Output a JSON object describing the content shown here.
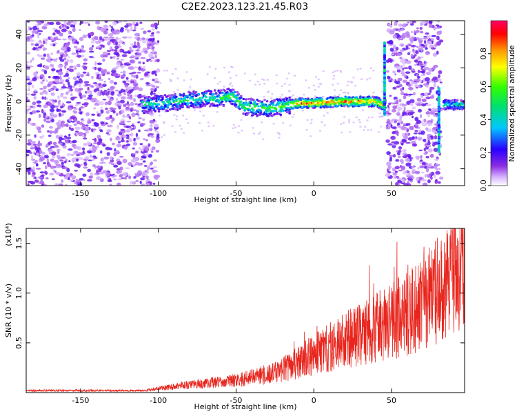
{
  "title": "C2E2.2023.123.21.45.R03",
  "colors": {
    "snr_line": "#e8261e",
    "axes": "#000000"
  },
  "chart_data": [
    {
      "type": "heatmap",
      "xlabel": "Height of straight line (km)",
      "ylabel": "Frequency (Hz)",
      "xlim": [
        -185,
        97
      ],
      "ylim": [
        -50,
        48
      ],
      "xticks": [
        -150,
        -100,
        -50,
        0,
        50
      ],
      "yticks": [
        -40,
        -20,
        0,
        20,
        40
      ],
      "colorbar": {
        "label": "Normalized spectral amplitude",
        "range": [
          0.0,
          1.0
        ],
        "ticks": [
          0.0,
          0.2,
          0.4,
          0.6,
          0.8
        ],
        "colormap": "rainbow (purple-blue-cyan-green-yellow-red-magenta)"
      },
      "features": {
        "noise_regions_km": [
          [
            -185,
            -100
          ],
          [
            47,
            82
          ]
        ],
        "signal_band": {
          "x_km": [
            -110,
            97
          ],
          "center_hz": [
            [
              -110,
              -2
            ],
            [
              -95,
              -1
            ],
            [
              -80,
              1
            ],
            [
              -60,
              2
            ],
            [
              -52,
              3
            ],
            [
              -45,
              -3
            ],
            [
              -30,
              -4
            ],
            [
              -20,
              -3
            ],
            [
              -10,
              -1
            ],
            [
              0,
              -1
            ],
            [
              20,
              0
            ],
            [
              40,
              0
            ],
            [
              44,
              -2
            ]
          ]
        }
      }
    },
    {
      "type": "line",
      "xlabel": "Height of straight line (km)",
      "ylabel": "SNR (10 * v/v)",
      "y_multiplier": "(x10⁴)",
      "xlim": [
        -185,
        97
      ],
      "ylim": [
        0,
        1.65
      ],
      "xticks": [
        -150,
        -100,
        -50,
        0,
        50
      ],
      "yticks": [
        0.5,
        1.0,
        1.5
      ],
      "ytick_labels": [
        "0.5",
        "1.0",
        "1.5"
      ],
      "series": [
        {
          "trend_points": [
            [
              -185,
              0.02
            ],
            [
              -110,
              0.02
            ],
            [
              -100,
              0.04
            ],
            [
              -80,
              0.08
            ],
            [
              -50,
              0.12
            ],
            [
              -25,
              0.2
            ],
            [
              -10,
              0.3
            ],
            [
              0,
              0.38
            ],
            [
              20,
              0.52
            ],
            [
              50,
              0.72
            ],
            [
              70,
              0.88
            ],
            [
              85,
              1.1
            ],
            [
              97,
              1.3
            ]
          ],
          "peak_max": 1.62
        }
      ]
    }
  ]
}
